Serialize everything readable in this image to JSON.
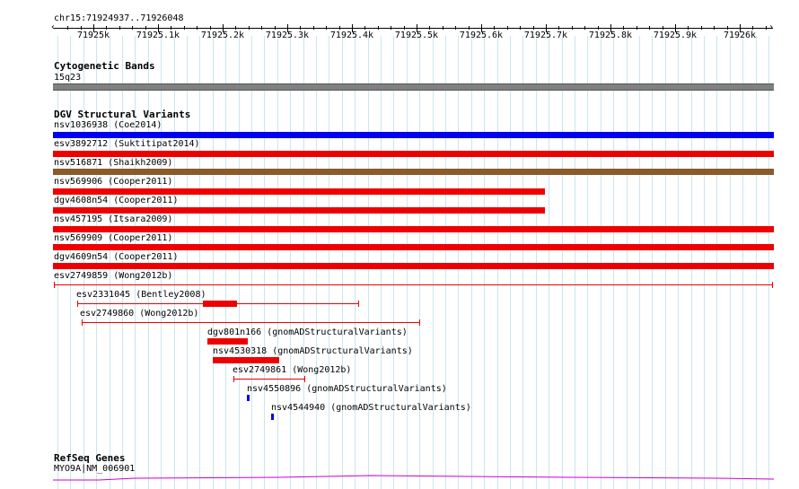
{
  "position_label": "chr15:71924937..71926048",
  "ruler": {
    "labels": [
      "71925k",
      "71925.1k",
      "71925.2k",
      "71925.3k",
      "71925.4k",
      "71925.5k",
      "71925.6k",
      "71925.7k",
      "71925.8k",
      "71925.9k",
      "71926k"
    ]
  },
  "tracks": {
    "cytoband": {
      "title": "Cytogenetic Bands",
      "band_label": "15q23",
      "band_color": "#808080"
    },
    "dgv": {
      "title": "DGV Structural Variants",
      "full_width_variants": [
        {
          "label": "nsv1036938 (Coe2014)",
          "color": "#0000ee",
          "extent": "full"
        },
        {
          "label": "esv3892712 (Suktitipat2014)",
          "color": "#ee0000",
          "extent": "full"
        },
        {
          "label": "nsv516871 (Shaikh2009)",
          "color": "#8b5a2b",
          "extent": "full"
        },
        {
          "label": "nsv569906 (Cooper2011)",
          "color": "#ee0000",
          "extent": "partial"
        },
        {
          "label": "dgv4608n54 (Cooper2011)",
          "color": "#ee0000",
          "extent": "partial"
        },
        {
          "label": "nsv457195 (Itsara2009)",
          "color": "#ee0000",
          "extent": "full"
        },
        {
          "label": "nsv569909 (Cooper2011)",
          "color": "#ee0000",
          "extent": "full"
        },
        {
          "label": "dgv4609n54 (Cooper2011)",
          "color": "#ee0000",
          "extent": "full"
        },
        {
          "label": "esv2749859 (Wong2012b)",
          "color": "#ee0000",
          "extent": "range"
        }
      ],
      "stacked_variants": [
        {
          "label": "esv2331045 (Bentley2008)",
          "color": "#ee0000",
          "style": "range-with-block"
        },
        {
          "label": "esv2749860 (Wong2012b)",
          "color": "#ee0000",
          "style": "range"
        },
        {
          "label": "dgv801n166 (gnomADStructuralVariants)",
          "color": "#ee0000",
          "style": "block"
        },
        {
          "label": "nsv4530318 (gnomADStructuralVariants)",
          "color": "#ee0000",
          "style": "block"
        },
        {
          "label": "esv2749861 (Wong2012b)",
          "color": "#ee0000",
          "style": "range"
        },
        {
          "label": "nsv4550896 (gnomADStructuralVariants)",
          "color": "#0000ee",
          "style": "small"
        },
        {
          "label": "nsv4544940 (gnomADStructuralVariants)",
          "color": "#0000ee",
          "style": "small"
        }
      ]
    },
    "refseq": {
      "title": "RefSeq Genes",
      "gene_label": "MYO9A|NM_006901",
      "color": "#cc00cc"
    }
  }
}
